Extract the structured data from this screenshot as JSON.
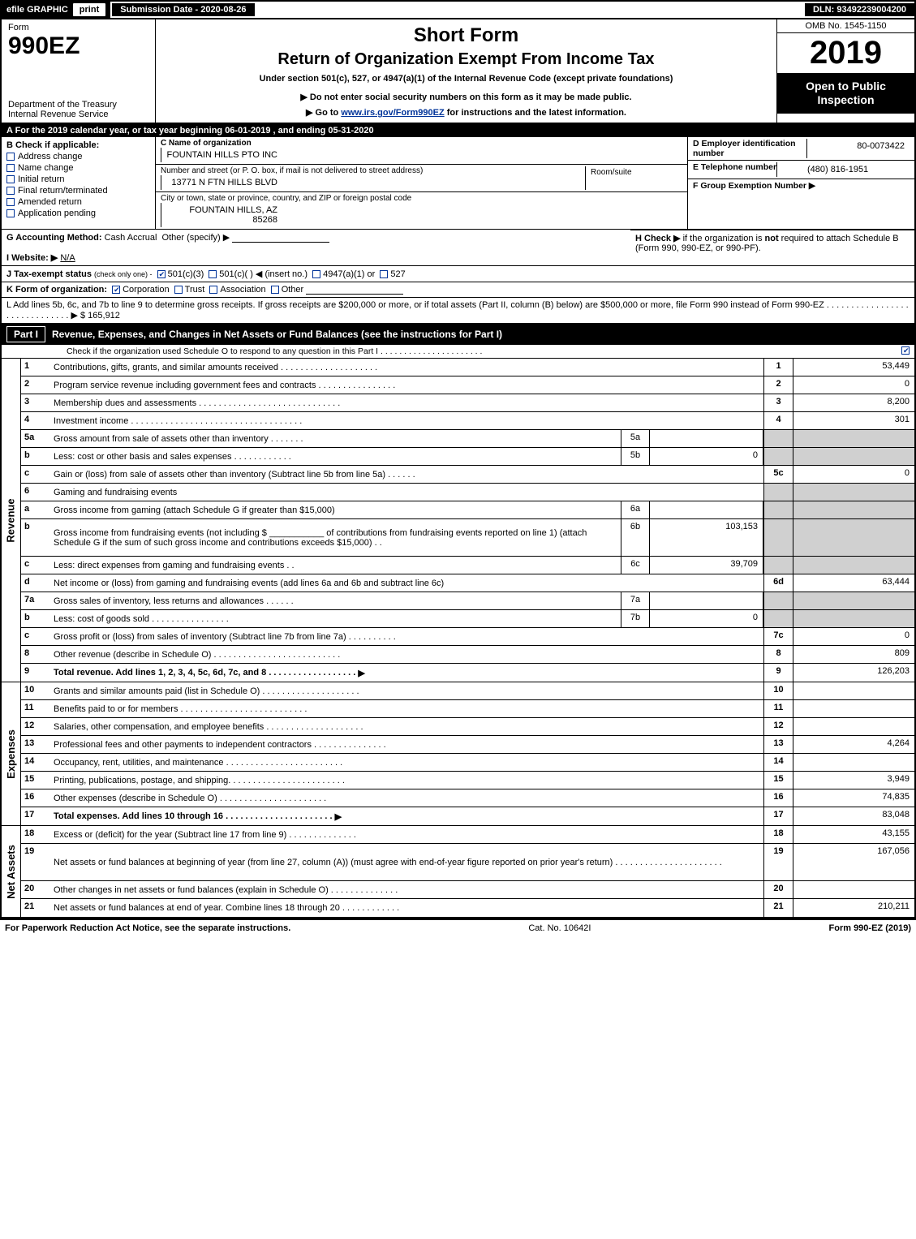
{
  "topbar": {
    "efile": "efile GRAPHIC",
    "print": "print",
    "submission": "Submission Date - 2020-08-26",
    "dln": "DLN: 93492239004200"
  },
  "header": {
    "form_label": "Form",
    "form_no": "990EZ",
    "dept1": "Department of the Treasury",
    "dept2": "Internal Revenue Service",
    "short_form": "Short Form",
    "title": "Return of Organization Exempt From Income Tax",
    "subtitle": "Under section 501(c), 527, or 4947(a)(1) of the Internal Revenue Code (except private foundations)",
    "note1": "▶ Do not enter social security numbers on this form as it may be made public.",
    "note2_pre": "▶ Go to ",
    "note2_link": "www.irs.gov/Form990EZ",
    "note2_post": " for instructions and the latest information.",
    "omb": "OMB No. 1545-1150",
    "year": "2019",
    "open": "Open to Public Inspection"
  },
  "line_a": "A  For the 2019 calendar year, or tax year beginning 06-01-2019 , and ending 05-31-2020",
  "block_b": {
    "hdr": "B  Check if applicable:",
    "items": [
      "Address change",
      "Name change",
      "Initial return",
      "Final return/terminated",
      "Amended return",
      "Application pending"
    ]
  },
  "block_c": {
    "name_label": "C Name of organization",
    "name": "FOUNTAIN HILLS PTO INC",
    "addr_label": "Number and street (or P. O. box, if mail is not delivered to street address)",
    "addr": "13771 N FTN HILLS BLVD",
    "room_label": "Room/suite",
    "city_label": "City or town, state or province, country, and ZIP or foreign postal code",
    "city": "FOUNTAIN HILLS, AZ  85268"
  },
  "block_d": {
    "ein_label": "D Employer identification number",
    "ein": "80-0073422",
    "tel_label": "E Telephone number",
    "tel": "(480) 816-1951",
    "grp_label": "F Group Exemption Number  ▶"
  },
  "line_g": {
    "label": "G Accounting Method:",
    "cash": "Cash",
    "accrual": "Accrual",
    "other": "Other (specify) ▶"
  },
  "line_h": {
    "text1": "H  Check ▶",
    "text2": "if the organization is ",
    "not": "not",
    "text3": " required to attach Schedule B",
    "text4": "(Form 990, 990-EZ, or 990-PF)."
  },
  "line_i": {
    "label": "I Website: ▶",
    "val": "N/A"
  },
  "line_j": {
    "label": "J Tax-exempt status",
    "note": "(check only one) -",
    "o1": "501(c)(3)",
    "o2": "501(c)( )",
    "ins": "◀ (insert no.)",
    "o3": "4947(a)(1) or",
    "o4": "527"
  },
  "line_k": {
    "label": "K Form of organization:",
    "o1": "Corporation",
    "o2": "Trust",
    "o3": "Association",
    "o4": "Other"
  },
  "line_l": {
    "text": "L Add lines 5b, 6c, and 7b to line 9 to determine gross receipts. If gross receipts are $200,000 or more, or if total assets (Part II, column (B) below) are $500,000 or more, file Form 990 instead of Form 990-EZ  .  .  .  .  .  .  .  .  .  .  .  .  .  .  .  .  .  .  .  .  .  .  .  .  .  .  .  .  .  .  ▶ $ ",
    "val": "165,912"
  },
  "part1": {
    "label": "Part I",
    "title": "Revenue, Expenses, and Changes in Net Assets or Fund Balances (see the instructions for Part I)",
    "note": "Check if the organization used Schedule O to respond to any question in this Part I  .  .  .  .  .  .  .  .  .  .  .  .  .  .  .  .  .  .  .  .  .  ."
  },
  "revenue_rows": [
    {
      "n": "1",
      "d": "Contributions, gifts, grants, and similar amounts received  .  .  .  .  .  .  .  .  .  .  .  .  .  .  .  .  .  .  .  .",
      "ln": "1",
      "v": "53,449"
    },
    {
      "n": "2",
      "d": "Program service revenue including government fees and contracts  .  .  .  .  .  .  .  .  .  .  .  .  .  .  .  .",
      "ln": "2",
      "v": "0"
    },
    {
      "n": "3",
      "d": "Membership dues and assessments  .  .  .  .  .  .  .  .  .  .  .  .  .  .  .  .  .  .  .  .  .  .  .  .  .  .  .  .  .",
      "ln": "3",
      "v": "8,200"
    },
    {
      "n": "4",
      "d": "Investment income  .  .  .  .  .  .  .  .  .  .  .  .  .  .  .  .  .  .  .  .  .  .  .  .  .  .  .  .  .  .  .  .  .  .  .",
      "ln": "4",
      "v": "301"
    },
    {
      "n": "5a",
      "d": "Gross amount from sale of assets other than inventory  .  .  .  .  .  .  .",
      "mn": "5a",
      "mv": "",
      "grey_val": true
    },
    {
      "n": "b",
      "d": "Less: cost or other basis and sales expenses  .  .  .  .  .  .  .  .  .  .  .  .",
      "mn": "5b",
      "mv": "0",
      "grey_val": true
    },
    {
      "n": "c",
      "d": "Gain or (loss) from sale of assets other than inventory (Subtract line 5b from line 5a)  .  .  .  .  .  .",
      "ln": "5c",
      "v": "0"
    },
    {
      "n": "6",
      "d": "Gaming and fundraising events",
      "grey_ln": true,
      "grey_val": true
    },
    {
      "n": "a",
      "d": "Gross income from gaming (attach Schedule G if greater than $15,000)",
      "mn": "6a",
      "mv": "",
      "grey_val": true
    },
    {
      "n": "b",
      "d_html": true,
      "d": "Gross income from fundraising events (not including $ ___________ of contributions from fundraising events reported on line 1) (attach Schedule G if the sum of such gross income and contributions exceeds $15,000)    .  .",
      "mn": "6b",
      "mv": "103,153",
      "grey_val": true,
      "tall": true
    },
    {
      "n": "c",
      "d": "Less: direct expenses from gaming and fundraising events        .  .",
      "mn": "6c",
      "mv": "39,709",
      "grey_val": true
    },
    {
      "n": "d",
      "d": "Net income or (loss) from gaming and fundraising events (add lines 6a and 6b and subtract line 6c)",
      "ln": "6d",
      "v": "63,444"
    },
    {
      "n": "7a",
      "d": "Gross sales of inventory, less returns and allowances  .  .  .  .  .  .",
      "mn": "7a",
      "mv": "",
      "grey_val": true
    },
    {
      "n": "b",
      "d": "Less: cost of goods sold           .  .  .  .  .  .  .  .  .  .  .  .  .  .  .  .",
      "mn": "7b",
      "mv": "0",
      "grey_val": true
    },
    {
      "n": "c",
      "d": "Gross profit or (loss) from sales of inventory (Subtract line 7b from line 7a)  .  .  .  .  .  .  .  .  .  .",
      "ln": "7c",
      "v": "0"
    },
    {
      "n": "8",
      "d": "Other revenue (describe in Schedule O)  .  .  .  .  .  .  .  .  .  .  .  .  .  .  .  .  .  .  .  .  .  .  .  .  .  .",
      "ln": "8",
      "v": "809"
    },
    {
      "n": "9",
      "d": "Total revenue. Add lines 1, 2, 3, 4, 5c, 6d, 7c, and 8   .  .  .  .  .  .  .  .  .  .  .  .  .  .  .  .  .  .",
      "ln": "9",
      "v": "126,203",
      "total": true,
      "arrow": true
    }
  ],
  "expense_rows": [
    {
      "n": "10",
      "d": "Grants and similar amounts paid (list in Schedule O)  .  .  .  .  .  .  .  .  .  .  .  .  .  .  .  .  .  .  .  .",
      "ln": "10",
      "v": ""
    },
    {
      "n": "11",
      "d": "Benefits paid to or for members       .  .  .  .  .  .  .  .  .  .  .  .  .  .  .  .  .  .  .  .  .  .  .  .  .  .",
      "ln": "11",
      "v": ""
    },
    {
      "n": "12",
      "d": "Salaries, other compensation, and employee benefits  .  .  .  .  .  .  .  .  .  .  .  .  .  .  .  .  .  .  .  .",
      "ln": "12",
      "v": ""
    },
    {
      "n": "13",
      "d": "Professional fees and other payments to independent contractors  .  .  .  .  .  .  .  .  .  .  .  .  .  .  .",
      "ln": "13",
      "v": "4,264"
    },
    {
      "n": "14",
      "d": "Occupancy, rent, utilities, and maintenance  .  .  .  .  .  .  .  .  .  .  .  .  .  .  .  .  .  .  .  .  .  .  .  .",
      "ln": "14",
      "v": ""
    },
    {
      "n": "15",
      "d": "Printing, publications, postage, and shipping.  .  .  .  .  .  .  .  .  .  .  .  .  .  .  .  .  .  .  .  .  .  .  .",
      "ln": "15",
      "v": "3,949"
    },
    {
      "n": "16",
      "d": "Other expenses (describe in Schedule O)       .  .  .  .  .  .  .  .  .  .  .  .  .  .  .  .  .  .  .  .  .  .",
      "ln": "16",
      "v": "74,835"
    },
    {
      "n": "17",
      "d": "Total expenses. Add lines 10 through 16     .  .  .  .  .  .  .  .  .  .  .  .  .  .  .  .  .  .  .  .  .  .",
      "ln": "17",
      "v": "83,048",
      "total": true,
      "arrow": true
    }
  ],
  "net_rows": [
    {
      "n": "18",
      "d": "Excess or (deficit) for the year (Subtract line 17 from line 9)        .  .  .  .  .  .  .  .  .  .  .  .  .  .",
      "ln": "18",
      "v": "43,155"
    },
    {
      "n": "19",
      "d": "Net assets or fund balances at beginning of year (from line 27, column (A)) (must agree with end-of-year figure reported on prior year's return)  .  .  .  .  .  .  .  .  .  .  .  .  .  .  .  .  .  .  .  .  .  .",
      "ln": "19",
      "v": "167,056",
      "tall": true
    },
    {
      "n": "20",
      "d": "Other changes in net assets or fund balances (explain in Schedule O)  .  .  .  .  .  .  .  .  .  .  .  .  .  .",
      "ln": "20",
      "v": ""
    },
    {
      "n": "21",
      "d": "Net assets or fund balances at end of year. Combine lines 18 through 20  .  .  .  .  .  .  .  .  .  .  .  .",
      "ln": "21",
      "v": "210,211"
    }
  ],
  "sections": {
    "revenue": "Revenue",
    "expenses": "Expenses",
    "net": "Net Assets"
  },
  "footer": {
    "left": "For Paperwork Reduction Act Notice, see the separate instructions.",
    "mid": "Cat. No. 10642I",
    "right": "Form 990-EZ (2019)"
  }
}
